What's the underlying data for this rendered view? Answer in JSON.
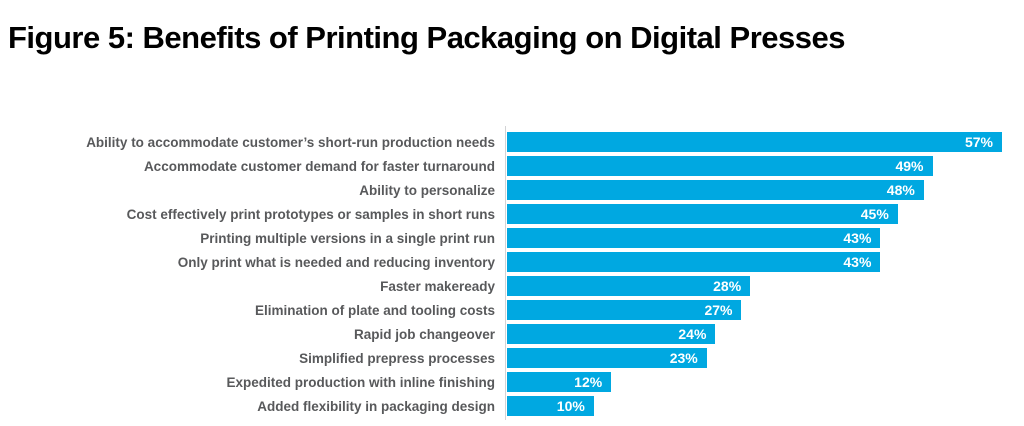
{
  "figure": {
    "title": "Figure 5: Benefits of Printing Packaging on Digital Presses"
  },
  "chart_data": {
    "type": "bar",
    "orientation": "horizontal",
    "title": "Figure 5: Benefits of Printing Packaging on Digital Presses",
    "categories": [
      "Ability to accommodate customer’s short-run production needs",
      "Accommodate customer demand for faster turnaround",
      "Ability to personalize",
      "Cost effectively print prototypes or samples in short runs",
      "Printing multiple versions in a single print run",
      "Only print what is needed and reducing inventory",
      "Faster makeready",
      "Elimination of plate and tooling costs",
      "Rapid job changeover",
      "Simplified prepress processes",
      "Expedited production with inline finishing",
      "Added flexibility in packaging design"
    ],
    "values": [
      57,
      49,
      48,
      45,
      43,
      43,
      28,
      27,
      24,
      23,
      12,
      10
    ],
    "value_labels": [
      "57%",
      "49%",
      "48%",
      "45%",
      "43%",
      "43%",
      "28%",
      "27%",
      "24%",
      "23%",
      "12%",
      "10%"
    ],
    "value_suffix": "%",
    "xlim": [
      0,
      57
    ],
    "grid": false,
    "legend": false,
    "colors": {
      "bar": "#00a8e1",
      "value_text": "#ffffff",
      "category_text": "#58595b",
      "title_text": "#000000",
      "axis_line": "#d2d3d5"
    }
  }
}
